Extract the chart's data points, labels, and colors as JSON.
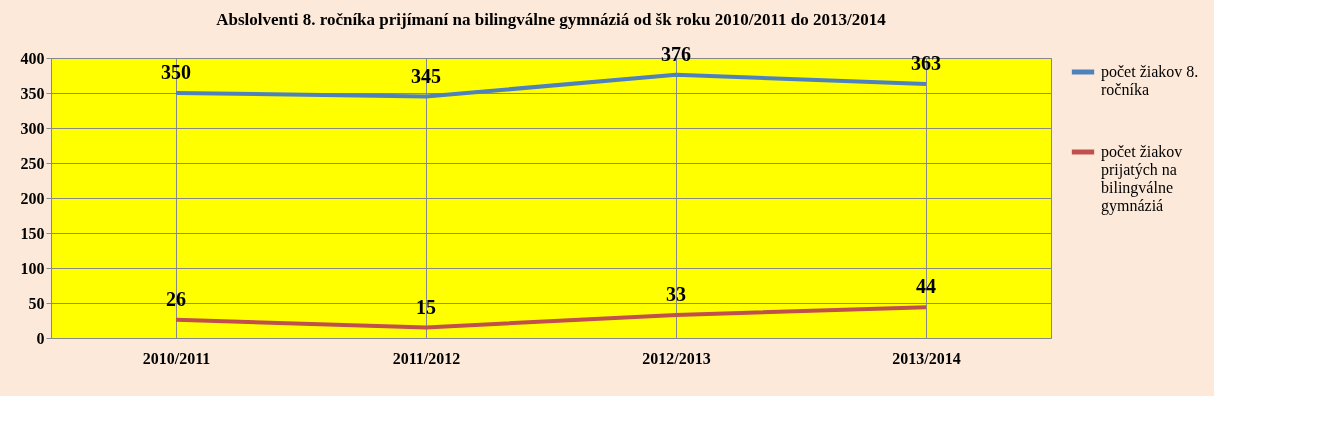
{
  "chart_data": {
    "type": "line",
    "title": "Abslolventi  8. ročníka prijímaní  na bilingválne gymnáziá od šk roku 2010/2011 do  2013/2014",
    "categories": [
      "2010/2011",
      "2011/2012",
      "2012/2013",
      "2013/2014"
    ],
    "series": [
      {
        "name": "počet žiakov 8. ročníka",
        "color": "#4f81bd",
        "values": [
          350,
          345,
          376,
          363
        ]
      },
      {
        "name": "počet žiakov prijatých na bilingválne gymnáziá",
        "color": "#c0504d",
        "values": [
          26,
          15,
          33,
          44
        ]
      }
    ],
    "ylim": [
      0,
      400
    ],
    "yticks": [
      0,
      50,
      100,
      150,
      200,
      250,
      300,
      350,
      400
    ],
    "grid": true,
    "legend": "right",
    "data_labels": true,
    "marker": "none",
    "line_style": "solid"
  }
}
